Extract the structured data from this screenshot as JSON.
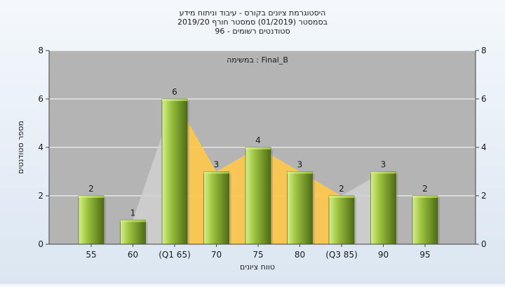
{
  "chart_data": {
    "type": "bar",
    "title_lines": [
      "היסטוגרמת ציונים בקורס - עיבוד וניתוח מידע",
      "בסמסטר  (01/2019)  סמסטר חורף  2019/20",
      "סטודנטים רשומים - 96"
    ],
    "legend_text": "במשימה : Final_B",
    "legend_position": "top-center",
    "xlabel": "טווח ציונים",
    "ylabel": "מספר סטודנטים",
    "categories": [
      "55",
      "60",
      "(Q1 65)",
      "70",
      "75",
      "80",
      "(Q3 85)",
      "90",
      "95"
    ],
    "values": [
      2,
      1,
      6,
      3,
      4,
      3,
      2,
      3,
      2
    ],
    "ylim": [
      0,
      8
    ],
    "yticks": [
      0,
      2,
      4,
      6,
      8
    ],
    "grid": true,
    "dual_y_axis": true,
    "interquartile_band": {
      "from": "(Q1 65)",
      "to": "(Q3 85)"
    },
    "colors": {
      "bar_light": "#d6f08a",
      "bar_mid": "#9cc33f",
      "bar_dark": "#4e6b16",
      "band": "#ffc84a",
      "plot_bg": "#b4b4b4",
      "grid": "#ffffff",
      "shadow": "#d2d2d2"
    }
  }
}
